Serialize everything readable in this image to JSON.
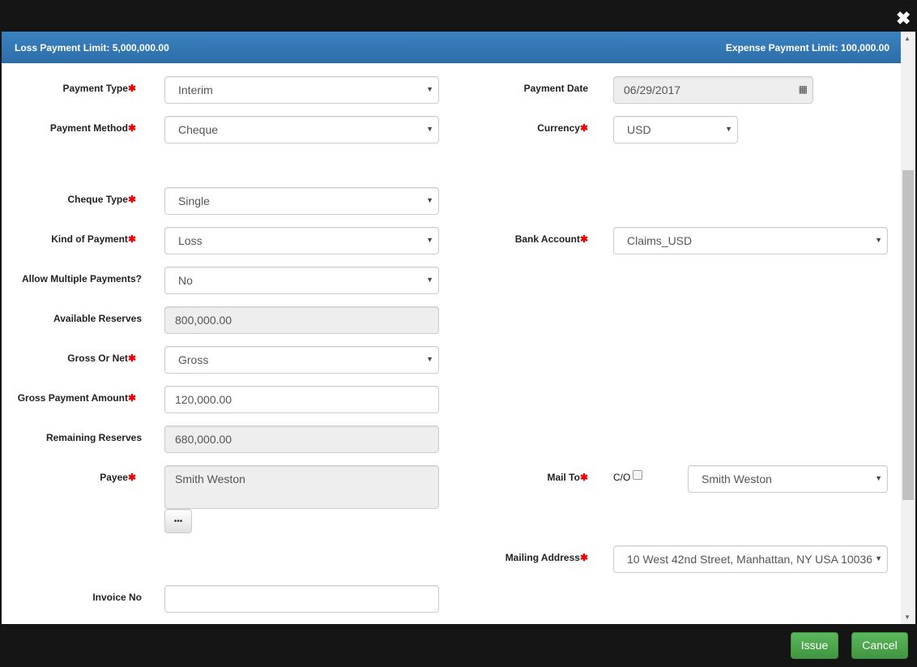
{
  "header": {
    "loss_limit": "Loss Payment Limit: 5,000,000.00",
    "expense_limit": "Expense Payment Limit: 100,000.00"
  },
  "left": [
    {
      "label": "Payment Type",
      "required": true,
      "value": "Interim",
      "kind": "select"
    },
    {
      "label": "Payment Method",
      "required": true,
      "value": "Cheque",
      "kind": "select"
    },
    {
      "label": "Cheque Type",
      "required": true,
      "value": "Single",
      "kind": "select"
    },
    {
      "label": "Kind of Payment",
      "required": true,
      "value": "Loss",
      "kind": "select"
    },
    {
      "label": "Allow Multiple Payments?",
      "required": false,
      "value": "No",
      "kind": "select"
    },
    {
      "label": "Available Reserves",
      "required": false,
      "value": "800,000.00",
      "kind": "readonly"
    },
    {
      "label": "Gross Or Net",
      "required": true,
      "value": "Gross",
      "kind": "select"
    },
    {
      "label": "Gross Payment Amount",
      "required": true,
      "value": "120,000.00",
      "kind": "input"
    },
    {
      "label": "Remaining Reserves",
      "required": false,
      "value": "680,000.00",
      "kind": "readonly"
    },
    {
      "label": "Payee",
      "required": true,
      "value": "Smith Weston",
      "kind": "textarea"
    },
    {
      "label": "Invoice No",
      "required": false,
      "value": "",
      "kind": "input"
    }
  ],
  "payee_lookup_label": "•••",
  "right": {
    "payment_date": {
      "label": "Payment Date",
      "value": "06/29/2017"
    },
    "currency": {
      "label": "Currency",
      "value": "USD"
    },
    "bank_account": {
      "label": "Bank Account",
      "value": "Claims_USD"
    },
    "mail_to": {
      "label": "Mail To",
      "co_label": "C/O",
      "co_checked": false,
      "value": "Smith Weston"
    },
    "mailing_address": {
      "label": "Mailing Address",
      "value": "10 West 42nd Street, Manhattan, NY USA 10036"
    }
  },
  "required_mark": "✱",
  "footer": {
    "issue": "Issue",
    "cancel": "Cancel"
  }
}
